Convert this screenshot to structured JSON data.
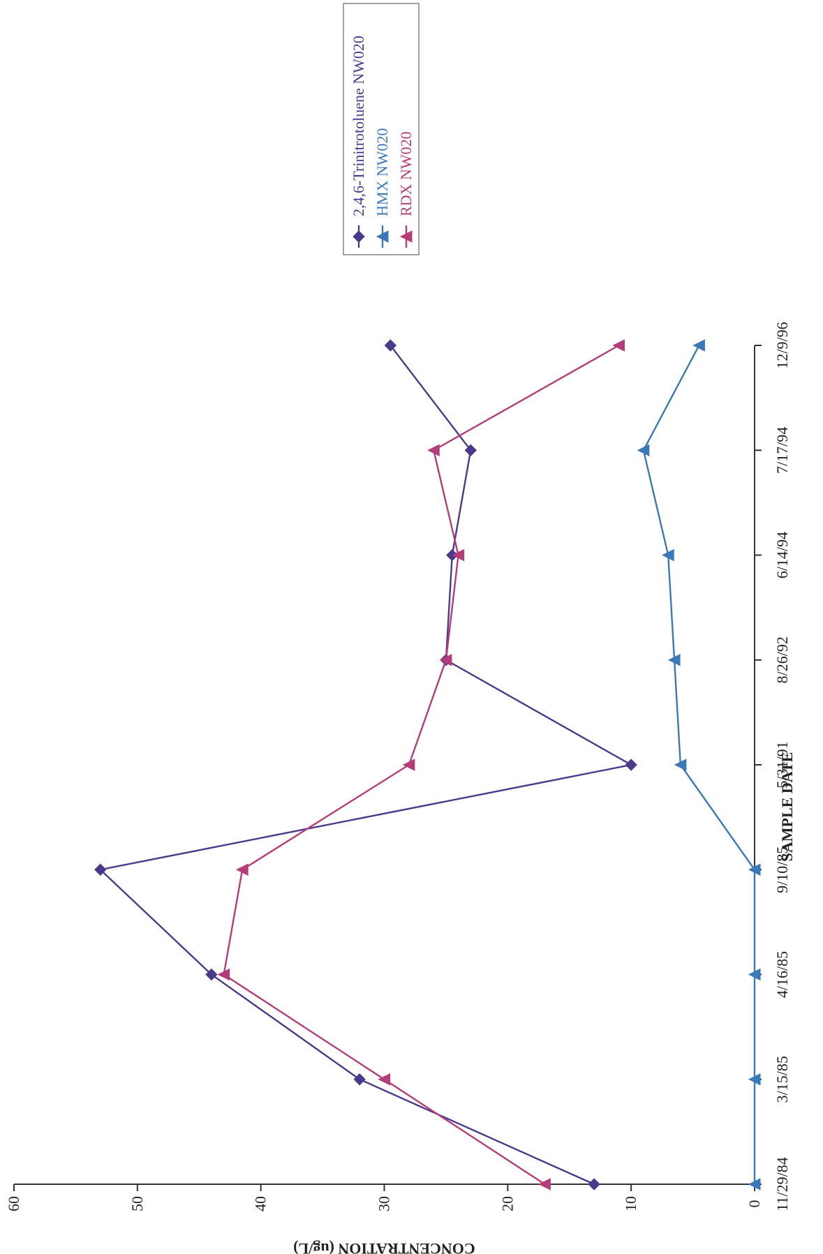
{
  "chart_data": {
    "type": "line",
    "title": "",
    "xlabel": "SAMPLE DATE",
    "ylabel": "CONCENTRATION (ug/L)",
    "categories": [
      "11/29/84",
      "3/15/85",
      "4/16/85",
      "9/10/85",
      "5/31/91",
      "8/26/92",
      "6/14/94",
      "7/17/94",
      "12/9/96"
    ],
    "ylim": [
      0,
      60
    ],
    "yticks": [
      0,
      10,
      20,
      30,
      40,
      50,
      60
    ],
    "grid": false,
    "legend_position": "top-right",
    "orientation": "rotated-90-clockwise",
    "series": [
      {
        "name": "2,4,6-Trinitrotoluene NW020",
        "color": "#4b3a8c",
        "marker": "diamond",
        "values": [
          13,
          32,
          44,
          53,
          10,
          25,
          24.5,
          23,
          29.5
        ]
      },
      {
        "name": "HMX NW020",
        "color": "#3b78b8",
        "marker": "triangle",
        "values": [
          0,
          0,
          0,
          0,
          6,
          6.5,
          7,
          9,
          4.5
        ]
      },
      {
        "name": "RDX NW020",
        "color": "#b43c78",
        "marker": "triangle",
        "values": [
          17,
          30,
          43,
          41.5,
          28,
          25,
          24,
          26,
          11
        ]
      }
    ]
  }
}
